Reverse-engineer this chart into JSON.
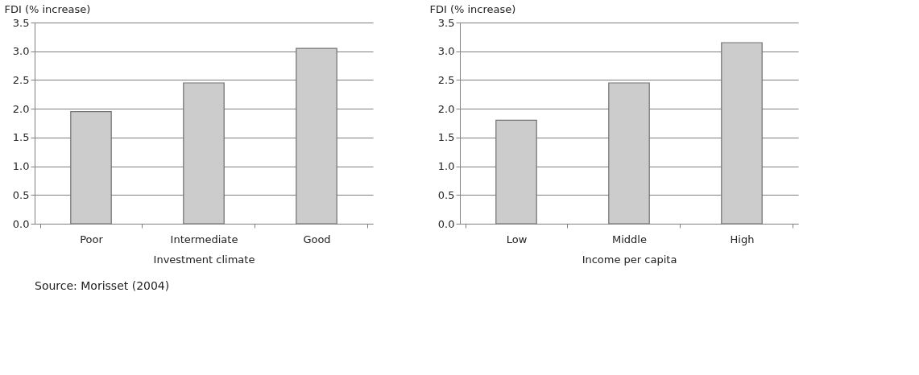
{
  "chart_data": [
    {
      "type": "bar",
      "ylabel": "FDI (% increase)",
      "xlabel": "Investment climate",
      "categories": [
        "Poor",
        "Intermediate",
        "Good"
      ],
      "series": [
        {
          "color": "#cccccc",
          "values": [
            1.95,
            2.45,
            3.05
          ]
        }
      ],
      "ylim": [
        0,
        3.5
      ],
      "yticks": [
        {
          "value": 0,
          "label": "0.0"
        },
        0.5,
        {
          "value": 1,
          "label": "1.0"
        },
        1.5,
        {
          "value": 2,
          "label": "2.0"
        },
        2.5,
        {
          "value": 3,
          "label": "3.0"
        },
        3.5
      ],
      "grid": "y",
      "legend": false,
      "annotations": [
        "Source: Morisset (2004)"
      ]
    },
    {
      "type": "bar",
      "ylabel": "FDI (% increase)",
      "xlabel": "Income per capita",
      "categories": [
        "Low",
        "Middle",
        "High"
      ],
      "series": [
        {
          "color": "#cccccc",
          "values": [
            1.8,
            2.45,
            3.15
          ]
        }
      ],
      "ylim": [
        0,
        3.5
      ],
      "yticks": [
        {
          "value": 0,
          "label": "0.0"
        },
        0.5,
        {
          "value": 1,
          "label": "1.0"
        },
        1.5,
        {
          "value": 2,
          "label": "2.0"
        },
        2.5,
        {
          "value": 3,
          "label": "3.0"
        },
        3.5
      ],
      "grid": "y",
      "legend": false
    }
  ]
}
